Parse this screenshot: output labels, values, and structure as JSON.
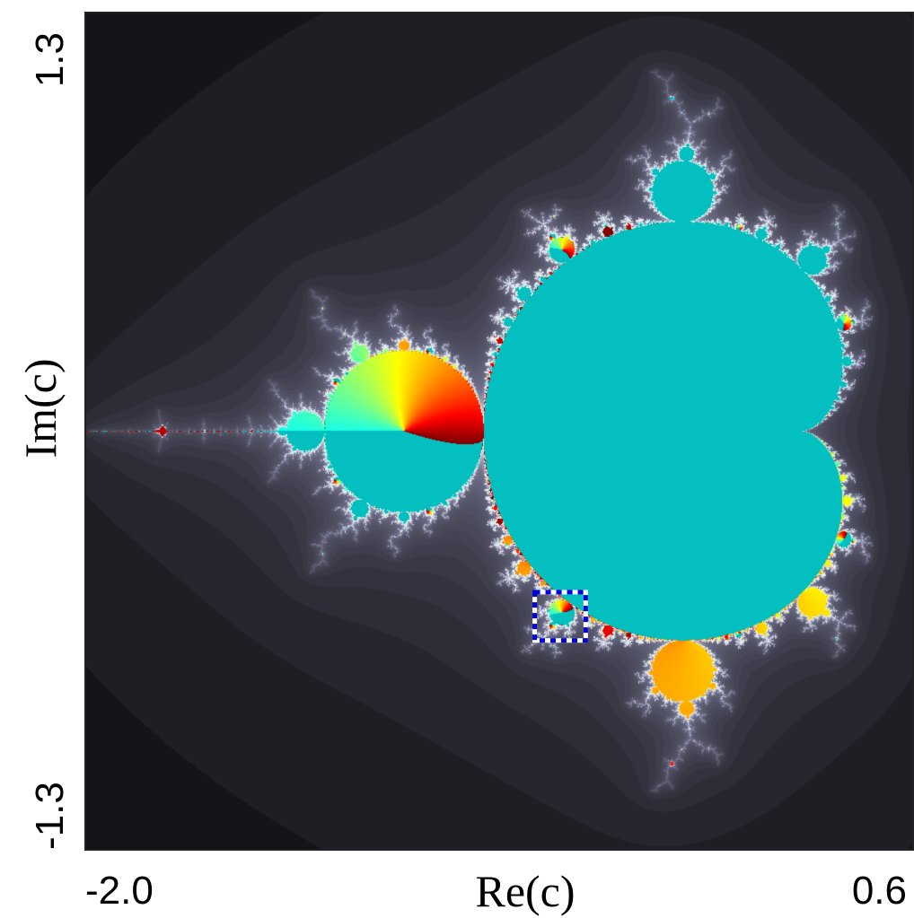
{
  "chart_data": {
    "type": "image",
    "x_label": "Re(c)",
    "y_label": "Im(c)",
    "xlim": [
      -2.0,
      0.6
    ],
    "ylim": [
      -1.3,
      1.3
    ],
    "xticks": [
      {
        "value": -2.0,
        "label": "-2.0"
      },
      0.6
    ],
    "yticks": [
      -1.3,
      1.3
    ],
    "highlight": {
      "xlim": [
        -0.59,
        -0.43
      ],
      "ylim": [
        -0.65,
        -0.5
      ]
    }
  }
}
